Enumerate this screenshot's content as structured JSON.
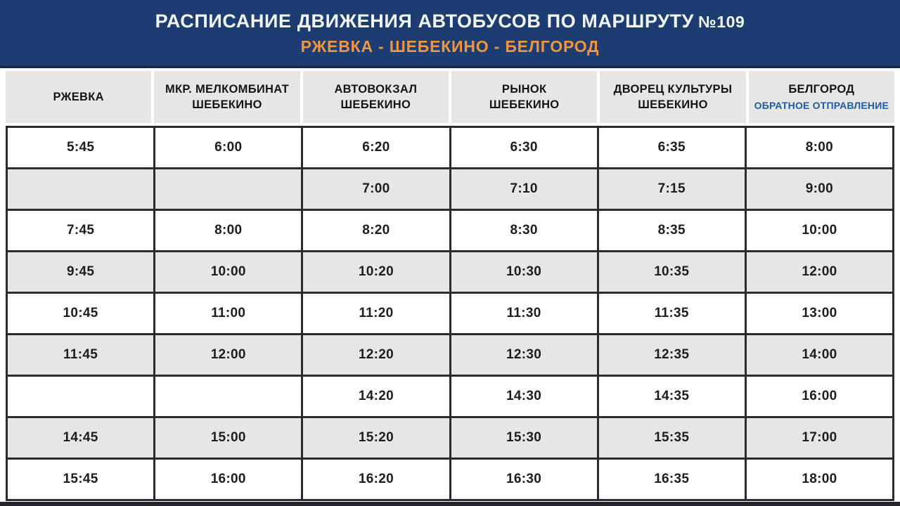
{
  "banner": {
    "title": "РАСПИСАНИЕ ДВИЖЕНИЯ АВТОБУСОВ ПО МАРШРУТУ",
    "route_number": "№109",
    "subtitle": "РЖЕВКА - ШЕБЕКИНО - БЕЛГОРОД"
  },
  "colors": {
    "banner_bg": "#1d3d72",
    "banner_title": "#f3f6f7",
    "banner_subtitle_orange": "#ef9540",
    "header_cell_bg": "#e8e6e4",
    "row_alt_bg": "#e8e6e4",
    "cell_border_dark": "#2c2a2e",
    "reverse_departure_blue": "#1e5ba7"
  },
  "table": {
    "columns": [
      {
        "line1": "РЖЕВКА",
        "line2": ""
      },
      {
        "line1": "МКР. МЕЛКОМБИНАТ",
        "line2": "ШЕБЕКИНО"
      },
      {
        "line1": "АВТОВОКЗАЛ",
        "line2": "ШЕБЕКИНО"
      },
      {
        "line1": "РЫНОК",
        "line2": "ШЕБЕКИНО"
      },
      {
        "line1": "ДВОРЕЦ КУЛЬТУРЫ",
        "line2": "ШЕБЕКИНО"
      },
      {
        "line1": "БЕЛГОРОД",
        "line2": "ОБРАТНОЕ ОТПРАВЛЕНИЕ"
      }
    ],
    "rows": [
      [
        "5:45",
        "6:00",
        "6:20",
        "6:30",
        "6:35",
        "8:00"
      ],
      [
        "",
        "",
        "7:00",
        "7:10",
        "7:15",
        "9:00"
      ],
      [
        "7:45",
        "8:00",
        "8:20",
        "8:30",
        "8:35",
        "10:00"
      ],
      [
        "9:45",
        "10:00",
        "10:20",
        "10:30",
        "10:35",
        "12:00"
      ],
      [
        "10:45",
        "11:00",
        "11:20",
        "11:30",
        "11:35",
        "13:00"
      ],
      [
        "11:45",
        "12:00",
        "12:20",
        "12:30",
        "12:35",
        "14:00"
      ],
      [
        "",
        "",
        "14:20",
        "14:30",
        "14:35",
        "16:00"
      ],
      [
        "14:45",
        "15:00",
        "15:20",
        "15:30",
        "15:35",
        "17:00"
      ],
      [
        "15:45",
        "16:00",
        "16:20",
        "16:30",
        "16:35",
        "18:00"
      ]
    ]
  }
}
